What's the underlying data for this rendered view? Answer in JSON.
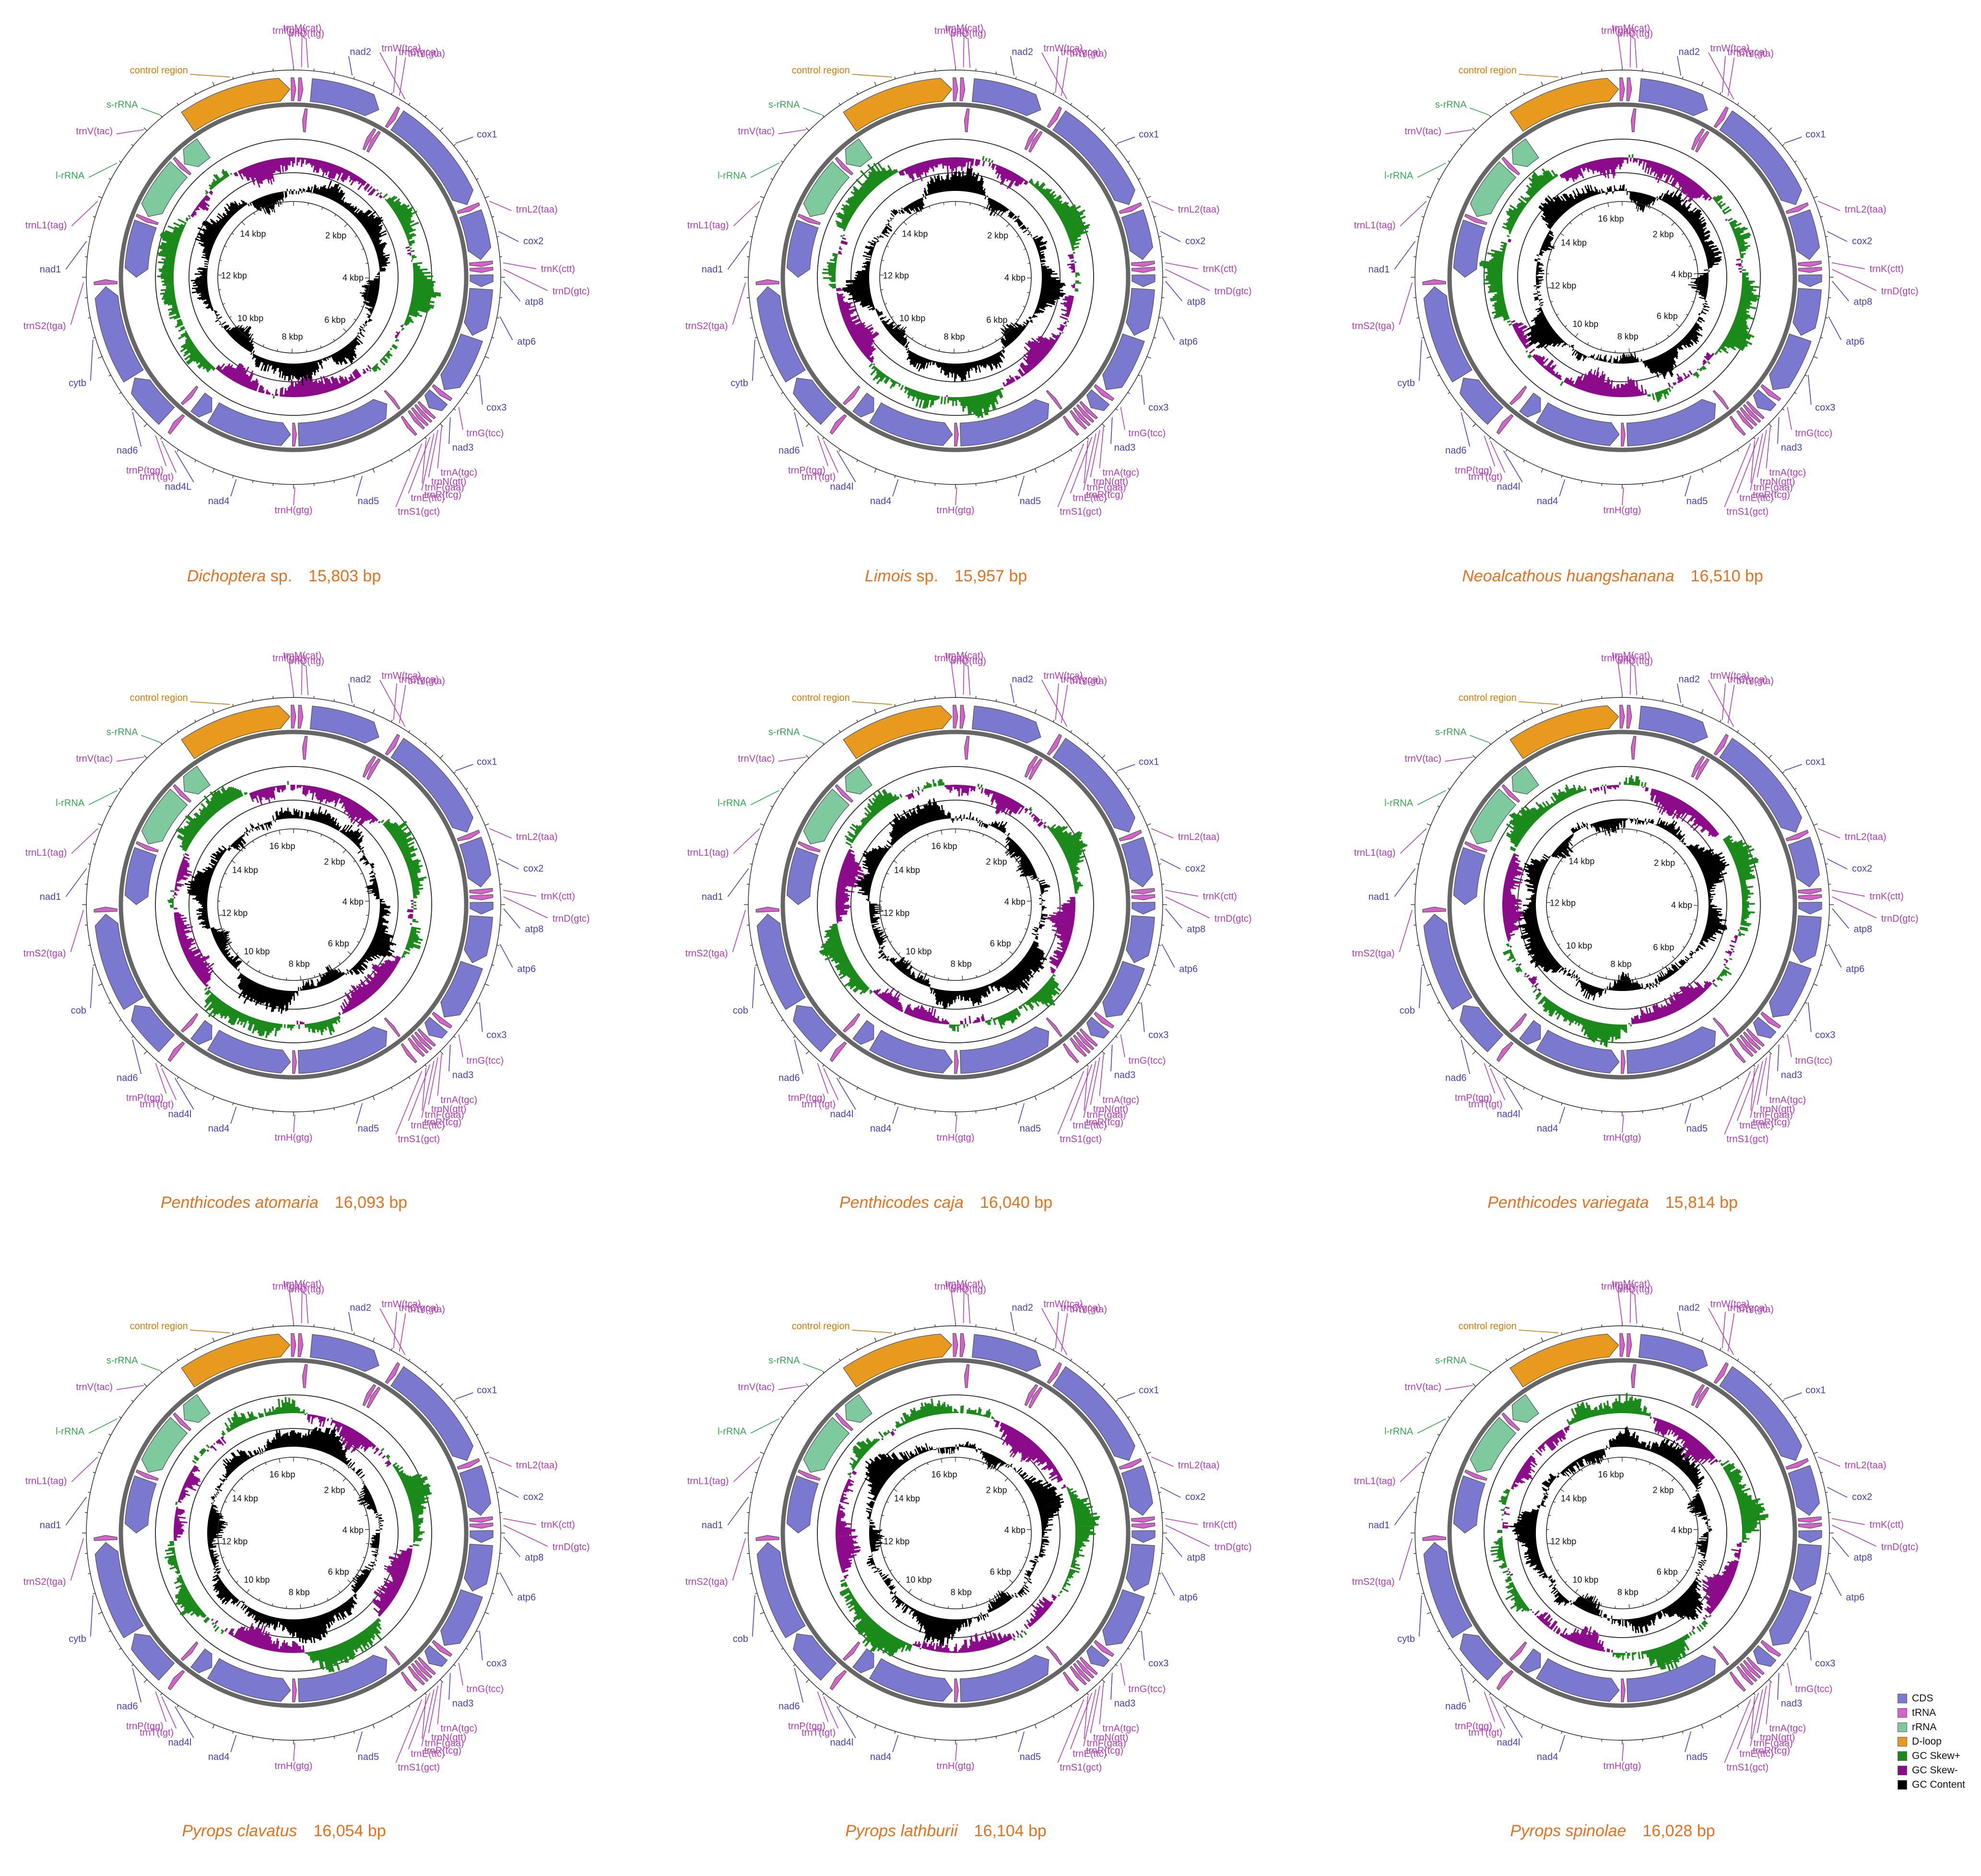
{
  "colors": {
    "CDS": "#7b79cf",
    "tRNA": "#d860cf",
    "rRNA": "#7ec99e",
    "D-loop": "#e79a1d",
    "GC_skew_pos": "#1a8a1a",
    "GC_skew_neg": "#8b0b8b",
    "GC_content": "#000000",
    "label_CDS": "#4a3fb4",
    "label_tRNA": "#b23cb4",
    "label_rRNA": "#31a84f",
    "label_dloop": "#d07a0a",
    "caption": "#e8711e"
  },
  "legend": [
    {
      "label": "CDS",
      "color": "#7b79cf"
    },
    {
      "label": "tRNA",
      "color": "#d860cf"
    },
    {
      "label": "rRNA",
      "color": "#7ec99e"
    },
    {
      "label": "D-loop",
      "color": "#e79a1d"
    },
    {
      "label": "GC Skew+",
      "color": "#1a8a1a"
    },
    {
      "label": "GC Skew-",
      "color": "#8b0b8b"
    },
    {
      "label": "GC Content",
      "color": "#000000"
    }
  ],
  "genes": [
    {
      "id": "ctrl",
      "label": "control region",
      "type": "dloop"
    },
    {
      "id": "trnI",
      "label": "trnI(gat)",
      "type": "tRNA"
    },
    {
      "id": "trnM",
      "label": "trnM(cat)",
      "type": "tRNA"
    },
    {
      "id": "trnQ",
      "label": "trnQ(ttg)",
      "type": "tRNA"
    },
    {
      "id": "nad2",
      "label": "nad2",
      "type": "CDS"
    },
    {
      "id": "trnC",
      "label": "trnC(gca)",
      "type": "tRNA"
    },
    {
      "id": "trnY",
      "label": "trnY(gta)",
      "type": "tRNA"
    },
    {
      "id": "trnW",
      "label": "trnW(tca)",
      "type": "tRNA"
    },
    {
      "id": "cox1",
      "label": "cox1",
      "type": "CDS"
    },
    {
      "id": "trnL2",
      "label": "trnL2(taa)",
      "type": "tRNA"
    },
    {
      "id": "cox2",
      "label": "cox2",
      "type": "CDS"
    },
    {
      "id": "trnK",
      "label": "trnK(ctt)",
      "type": "tRNA"
    },
    {
      "id": "trnD",
      "label": "trnD(gtc)",
      "type": "tRNA"
    },
    {
      "id": "atp8",
      "label": "atp8",
      "type": "CDS"
    },
    {
      "id": "atp6",
      "label": "atp6",
      "type": "CDS"
    },
    {
      "id": "cox3",
      "label": "cox3",
      "type": "CDS"
    },
    {
      "id": "trnG",
      "label": "trnG(tcc)",
      "type": "tRNA"
    },
    {
      "id": "nad3",
      "label": "nad3",
      "type": "CDS"
    },
    {
      "id": "trnA",
      "label": "trnA(tgc)",
      "type": "tRNA"
    },
    {
      "id": "trnN",
      "label": "trnN(gtt)",
      "type": "tRNA"
    },
    {
      "id": "trnR",
      "label": "trnR(tcg)",
      "type": "tRNA"
    },
    {
      "id": "trnE",
      "label": "trnE(ttc)",
      "type": "tRNA"
    },
    {
      "id": "trnF",
      "label": "trnF(gaa)",
      "type": "tRNA"
    },
    {
      "id": "trnS1",
      "label": "trnS1(gct)",
      "type": "tRNA"
    },
    {
      "id": "nad5",
      "label": "nad5",
      "type": "CDS"
    },
    {
      "id": "trnH",
      "label": "trnH(gtg)",
      "type": "tRNA"
    },
    {
      "id": "nad4",
      "label": "nad4",
      "type": "CDS"
    },
    {
      "id": "nad4l",
      "label": "nad4l",
      "type": "CDS"
    },
    {
      "id": "trnT",
      "label": "trnT(tgt)",
      "type": "tRNA"
    },
    {
      "id": "trnP",
      "label": "trnP(tgg)",
      "type": "tRNA"
    },
    {
      "id": "nad6",
      "label": "nad6",
      "type": "CDS"
    },
    {
      "id": "cytb",
      "label": "cytb",
      "type": "CDS"
    },
    {
      "id": "trnS2",
      "label": "trnS2(tga)",
      "type": "tRNA"
    },
    {
      "id": "nad1",
      "label": "nad1",
      "type": "CDS"
    },
    {
      "id": "trnL1",
      "label": "trnL1(tag)",
      "type": "tRNA"
    },
    {
      "id": "lrRNA",
      "label": "l-rRNA",
      "type": "rRNA"
    },
    {
      "id": "trnV",
      "label": "trnV(tac)",
      "type": "tRNA"
    },
    {
      "id": "srRNA",
      "label": "s-rRNA",
      "type": "rRNA"
    }
  ],
  "genomes": [
    {
      "species": "Dichoptera",
      "suffix": " sp.",
      "length": "15,803 bp",
      "kbp_max": 14,
      "overrides": {
        "nad4l": "nad4L"
      }
    },
    {
      "species": "Limois",
      "suffix": " sp.",
      "length": "15,957 bp",
      "kbp_max": 14,
      "overrides": {
        "nad4l": "nad4l"
      }
    },
    {
      "species": "Neoalcathous huangshanana",
      "suffix": "",
      "length": "16,510 bp",
      "kbp_max": 16,
      "overrides": {}
    },
    {
      "species": "Penthicodes atomaria",
      "suffix": "",
      "length": "16,093 bp",
      "kbp_max": 16,
      "overrides": {
        "cytb": "cob"
      }
    },
    {
      "species": "Penthicodes caja",
      "suffix": "",
      "length": "16,040 bp",
      "kbp_max": 16,
      "overrides": {
        "cytb": "cob"
      }
    },
    {
      "species": "Penthicodes variegata",
      "suffix": "",
      "length": "15,814 bp",
      "kbp_max": 14,
      "overrides": {
        "cytb": "cob"
      }
    },
    {
      "species": "Pyrops clavatus",
      "suffix": "",
      "length": "16,054 bp",
      "kbp_max": 16,
      "overrides": {}
    },
    {
      "species": "Pyrops lathburii",
      "suffix": "",
      "length": "16,104 bp",
      "kbp_max": 16,
      "overrides": {
        "cytb": "cob"
      }
    },
    {
      "species": "Pyrops spinolae",
      "suffix": "",
      "length": "16,028 bp",
      "kbp_max": 16,
      "overrides": {}
    }
  ]
}
